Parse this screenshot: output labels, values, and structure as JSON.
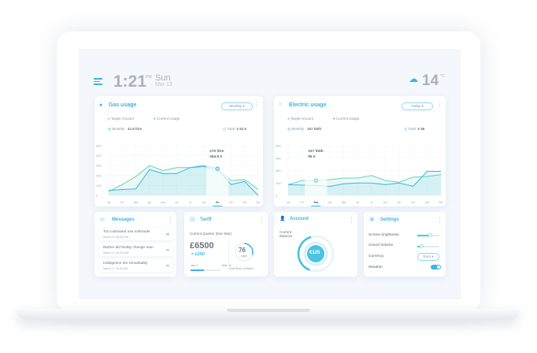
{
  "header": {
    "time": "1:21",
    "ampm": "PM",
    "day": "Sun",
    "date": "Mar 13",
    "temperature": "14",
    "temp_unit": "°C",
    "weather_icon": "cloud-snow-icon",
    "menu_icon": "menu-icon"
  },
  "gas": {
    "title": "Gas usage",
    "period": "Monthly",
    "legend": [
      "Target Amount",
      "Current Usage"
    ],
    "monthly_label": "Monthly",
    "monthly_value": "41.6 litre",
    "total_label": "Total",
    "total_value": "€ 62.5",
    "tooltip": [
      "270 litre",
      "364.5 €"
    ]
  },
  "electric": {
    "title": "Electric usage",
    "period": "Today",
    "legend": [
      "Target Amount",
      "Current Usage"
    ],
    "monthly_label": "Monthly",
    "monthly_value": "157 kWh",
    "total_label": "Total",
    "total_value": "€ 95",
    "tooltip": [
      "157 kWh",
      "95 €"
    ]
  },
  "messages": {
    "title": "Messages",
    "items": [
      {
        "text": "Too cultivated use solicitude",
        "date": "March 5, 08:05 PM"
      },
      {
        "text": "Barton did feebly change man",
        "date": "March 4, 02:30 AM"
      },
      {
        "text": "Indulgence ten remarkably",
        "date": "March 2, 11:20 AM"
      }
    ]
  },
  "tariff": {
    "title": "Tariff",
    "quarter": "Current Quarter (Dec-Mar)",
    "amount": "£6500",
    "delta": "> £250",
    "start": "Jan 1",
    "end": "Mar 31",
    "progress": 0.45,
    "days": "76",
    "days_label": "days",
    "until": "Until End of March",
    "days_fraction": 0.3
  },
  "account": {
    "title": "Account",
    "label": "Current Balance",
    "balance": "€125",
    "fraction": 0.4
  },
  "settings": {
    "title": "Settings",
    "brightness_label": "Screen brightness",
    "brightness": 0.6,
    "volume_label": "Sound Volume",
    "volume": 0.2,
    "currency_label": "Currency",
    "currency": "Euro",
    "weather_label": "Weather",
    "weather_on": true
  },
  "colors": {
    "accent": "#3cb4e6",
    "target": "#5fd6b4",
    "text": "#5a6478"
  },
  "chart_data": [
    {
      "type": "line",
      "title": "Gas usage",
      "categories": [
        "Ja",
        "Fe",
        "Ma",
        "Ap",
        "Ma",
        "Ju",
        "Jl",
        "Au",
        "Se",
        "Oc",
        "No",
        "De"
      ],
      "ylim": [
        0,
        500
      ],
      "yticks": [
        0,
        100,
        200,
        300,
        400,
        500
      ],
      "highlight": "Se",
      "series": [
        {
          "name": "Target Amount",
          "values": [
            40,
            110,
            190,
            300,
            250,
            280,
            280,
            290,
            250,
            150,
            160,
            60
          ]
        },
        {
          "name": "Current Usage",
          "values": [
            50,
            60,
            65,
            260,
            220,
            220,
            280,
            300,
            270,
            110,
            140,
            0
          ]
        }
      ]
    },
    {
      "type": "line",
      "title": "Electric usage",
      "categories": [
        "Ja",
        "Fe",
        "Ma",
        "Ap",
        "Ma",
        "Ju",
        "Jl",
        "Au",
        "Se",
        "Oc",
        "No",
        "De"
      ],
      "ylim": [
        0,
        600
      ],
      "yticks": [
        0,
        150,
        300,
        450,
        600
      ],
      "highlight": "Ma",
      "series": [
        {
          "name": "Target Amount",
          "values": [
            130,
            180,
            180,
            190,
            210,
            210,
            240,
            180,
            160,
            220,
            230,
            250
          ]
        },
        {
          "name": "Current Usage",
          "values": [
            130,
            125,
            120,
            110,
            140,
            150,
            150,
            130,
            150,
            110,
            290,
            290
          ]
        }
      ]
    }
  ]
}
